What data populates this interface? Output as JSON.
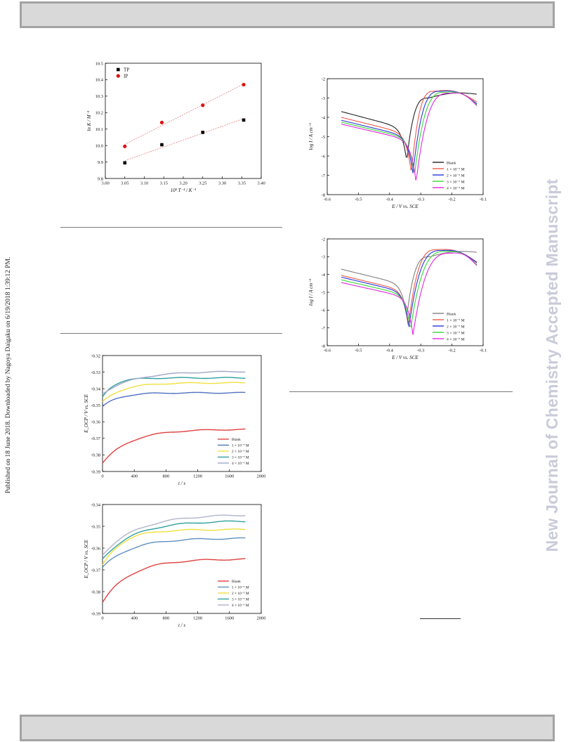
{
  "side_note_left": "Published on 18 June 2018. Downloaded by Nagoya Daigaku on 6/19/2018 1:39:12 PM.",
  "side_note_right": "New Journal of Chemistry Accepted Manuscript",
  "chart_data": [
    {
      "type": "scatter",
      "xlabel": "10³ T⁻¹ / K⁻¹",
      "ylabel": "ln K / M⁻¹",
      "xlim": [
        3.0,
        3.4
      ],
      "ylim": [
        9.8,
        10.5
      ],
      "xticks": [
        "3.00",
        "3.05",
        "3.10",
        "3.15",
        "3.20",
        "3.25",
        "3.30",
        "3.35",
        "3.40"
      ],
      "yticks": [
        "9.8",
        "9.9",
        "10.0",
        "10.1",
        "10.2",
        "10.3",
        "10.4",
        "10.5"
      ],
      "legend_position": "top-left",
      "series": [
        {
          "name": "TP",
          "color": "#000000",
          "marker": "square",
          "x": [
            3.05,
            3.145,
            3.25,
            3.355
          ],
          "y": [
            9.895,
            10.005,
            10.08,
            10.155
          ]
        },
        {
          "name": "IP",
          "color": "#e01010",
          "marker": "circle",
          "x": [
            3.05,
            3.145,
            3.25,
            3.355
          ],
          "y": [
            9.995,
            10.14,
            10.245,
            10.37
          ]
        }
      ]
    },
    {
      "type": "line",
      "xlabel": "E / V vs. SCE",
      "ylabel": "log I / A cm⁻²",
      "xlim": [
        -0.6,
        -0.1
      ],
      "ylim": [
        -8,
        -2
      ],
      "xticks": [
        "-0.6",
        "-0.5",
        "-0.4",
        "-0.3",
        "-0.2",
        "-0.1"
      ],
      "yticks": [
        "-2",
        "-3",
        "-4",
        "-5",
        "-6",
        "-7",
        "-8"
      ],
      "legend_position": "bottom-right",
      "series": [
        {
          "name": "Blank",
          "color": "#222222",
          "ecorr": -0.345,
          "imin": -6.25,
          "x0": -0.555,
          "y0": -3.7,
          "peak": -0.275,
          "ypk": -3.0,
          "xend": -0.12,
          "yend": -2.8
        },
        {
          "name": "1 × 10⁻⁵ M",
          "color": "#f05a4a",
          "ecorr": -0.33,
          "imin": -6.9,
          "x0": -0.555,
          "y0": -4.0,
          "peak": -0.255,
          "ypk": -2.65,
          "xend": -0.12,
          "yend": -3.2
        },
        {
          "name": "2 × 10⁻⁵ M",
          "color": "#2838d8",
          "ecorr": -0.325,
          "imin": -6.9,
          "x0": -0.555,
          "y0": -4.15,
          "peak": -0.235,
          "ypk": -2.65,
          "xend": -0.12,
          "yend": -3.3
        },
        {
          "name": "3 × 10⁻⁵ M",
          "color": "#38d838",
          "ecorr": -0.32,
          "imin": -7.0,
          "x0": -0.555,
          "y0": -4.25,
          "peak": -0.22,
          "ypk": -2.7,
          "xend": -0.12,
          "yend": -3.35
        },
        {
          "name": "4 × 10⁻⁵ M",
          "color": "#e028e0",
          "ecorr": -0.315,
          "imin": -7.35,
          "x0": -0.555,
          "y0": -4.35,
          "peak": -0.205,
          "ypk": -2.75,
          "xend": -0.12,
          "yend": -3.4
        }
      ]
    },
    {
      "type": "line",
      "xlabel": "E / V vs. SCE",
      "ylabel": "log I / A cm⁻²",
      "xlim": [
        -0.6,
        -0.1
      ],
      "ylim": [
        -8,
        -2
      ],
      "xticks": [
        "-0.6",
        "-0.5",
        "-0.4",
        "-0.3",
        "-0.2",
        "-0.1"
      ],
      "yticks": [
        "-2",
        "-3",
        "-4",
        "-5",
        "-6",
        "-7",
        "-8"
      ],
      "legend_position": "bottom-right",
      "series": [
        {
          "name": "Blank",
          "color": "#808080",
          "ecorr": -0.345,
          "imin": -6.4,
          "x0": -0.555,
          "y0": -3.7,
          "peak": -0.27,
          "ypk": -3.0,
          "xend": -0.12,
          "yend": -2.75
        },
        {
          "name": "1 × 10⁻⁵ M",
          "color": "#f05a4a",
          "ecorr": -0.34,
          "imin": -6.9,
          "x0": -0.555,
          "y0": -4.05,
          "peak": -0.245,
          "ypk": -2.6,
          "xend": -0.12,
          "yend": -3.3
        },
        {
          "name": "2 × 10⁻⁵ M",
          "color": "#2838d8",
          "ecorr": -0.338,
          "imin": -7.0,
          "x0": -0.555,
          "y0": -4.15,
          "peak": -0.23,
          "ypk": -2.65,
          "xend": -0.12,
          "yend": -3.35
        },
        {
          "name": "3 × 10⁻⁵ M",
          "color": "#38d838",
          "ecorr": -0.333,
          "imin": -7.1,
          "x0": -0.555,
          "y0": -4.3,
          "peak": -0.215,
          "ypk": -2.7,
          "xend": -0.12,
          "yend": -3.45
        },
        {
          "name": "4 × 10⁻⁵ M",
          "color": "#e028e0",
          "ecorr": -0.325,
          "imin": -7.4,
          "x0": -0.555,
          "y0": -4.45,
          "peak": -0.2,
          "ypk": -2.8,
          "xend": -0.12,
          "yend": -3.5
        }
      ]
    },
    {
      "type": "line",
      "xlabel": "t / s",
      "ylabel": "E_OCP / V vs. SCE",
      "xlim": [
        0,
        2000
      ],
      "ylim": [
        -0.39,
        -0.32
      ],
      "xticks": [
        "0",
        "400",
        "800",
        "1200",
        "1600",
        "2000"
      ],
      "yticks": [
        "-0.32",
        "-0.33",
        "-0.34",
        "-0.35",
        "-0.36",
        "-0.37",
        "-0.38",
        "-0.39"
      ],
      "legend_position": "bottom-right",
      "series": [
        {
          "name": "Blank",
          "color": "#e04040",
          "start": -0.385,
          "end": -0.3645,
          "tau": 350
        },
        {
          "name": "1 × 10⁻⁵ M",
          "color": "#5070c0",
          "start": -0.351,
          "end": -0.3425,
          "tau": 200
        },
        {
          "name": "2 × 10⁻⁵ M",
          "color": "#f0e040",
          "start": -0.348,
          "end": -0.3365,
          "tau": 250
        },
        {
          "name": "3 × 10⁻⁵ M",
          "color": "#30a0a0",
          "start": -0.345,
          "end": -0.3335,
          "tau": 150
        },
        {
          "name": "4 × 10⁻⁵ M",
          "color": "#a0a8c8",
          "start": -0.343,
          "end": -0.3295,
          "tau": 400
        }
      ]
    },
    {
      "type": "line",
      "xlabel": "t / s",
      "ylabel": "E_OCP / V vs. SCE",
      "xlim": [
        0,
        2000
      ],
      "ylim": [
        -0.39,
        -0.34
      ],
      "xticks": [
        "0",
        "400",
        "800",
        "1200",
        "1600",
        "2000"
      ],
      "yticks": [
        "-0.34",
        "-0.35",
        "-0.36",
        "-0.37",
        "-0.38",
        "-0.39"
      ],
      "legend_position": "bottom-right",
      "series": [
        {
          "name": "Blank",
          "color": "#e04040",
          "start": -0.385,
          "end": -0.365,
          "tau": 350
        },
        {
          "name": "1 × 10⁻⁵ M",
          "color": "#6090c0",
          "start": -0.369,
          "end": -0.3555,
          "tau": 350
        },
        {
          "name": "2 × 10⁻⁵ M",
          "color": "#f0e040",
          "start": -0.368,
          "end": -0.3515,
          "tau": 250
        },
        {
          "name": "3 × 10⁻⁵ M",
          "color": "#30a0a0",
          "start": -0.365,
          "end": -0.3475,
          "tau": 400
        },
        {
          "name": "4 × 10⁻⁵ M",
          "color": "#b0b4cc",
          "start": -0.363,
          "end": -0.3445,
          "tau": 450
        }
      ]
    }
  ]
}
